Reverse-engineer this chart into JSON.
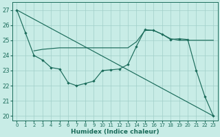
{
  "xlabel": "Humidex (Indice chaleur)",
  "bg_color": "#c8ece6",
  "line_color": "#1a6b5a",
  "grid_color": "#a0cfc8",
  "xlim": [
    -0.5,
    23.5
  ],
  "ylim": [
    19.7,
    27.5
  ],
  "yticks": [
    20,
    21,
    22,
    23,
    24,
    25,
    26,
    27
  ],
  "xticks": [
    0,
    1,
    2,
    3,
    4,
    5,
    6,
    7,
    8,
    9,
    10,
    11,
    12,
    13,
    14,
    15,
    16,
    17,
    18,
    19,
    20,
    21,
    22,
    23
  ],
  "line_straight": {
    "x": [
      0,
      23
    ],
    "y": [
      27.0,
      20.0
    ]
  },
  "line_upper": {
    "x": [
      2,
      3,
      4,
      5,
      6,
      7,
      8,
      9,
      10,
      11,
      12,
      13,
      14,
      15,
      16,
      17,
      18,
      19,
      20,
      21,
      22,
      23
    ],
    "y": [
      24.3,
      24.4,
      24.45,
      24.5,
      24.5,
      24.5,
      24.5,
      24.5,
      24.5,
      24.5,
      24.5,
      24.5,
      24.9,
      25.65,
      25.65,
      25.4,
      25.1,
      25.0,
      25.0,
      25.0,
      25.0,
      25.0
    ]
  },
  "line_marked": {
    "x": [
      0,
      1,
      2,
      3,
      4,
      5,
      6,
      7,
      8,
      9,
      10,
      11,
      12,
      13,
      14,
      15,
      16,
      17,
      18,
      19,
      20,
      21,
      22,
      23
    ],
    "y": [
      27.0,
      25.5,
      24.0,
      23.7,
      23.2,
      23.1,
      22.2,
      22.0,
      22.15,
      22.3,
      23.0,
      23.05,
      23.1,
      23.4,
      24.6,
      25.7,
      25.65,
      25.4,
      25.05,
      25.1,
      25.05,
      23.0,
      21.3,
      20.0
    ]
  }
}
